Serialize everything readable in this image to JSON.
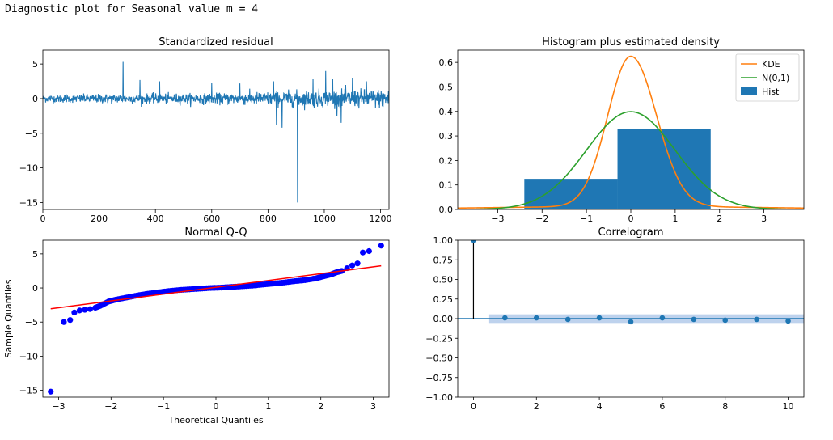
{
  "header": {
    "text": "Diagnostic plot for Seasonal value m = 4"
  },
  "colors": {
    "blue": "#1f77b4",
    "orange": "#ff7f0e",
    "green": "#2ca02c",
    "red": "#ff0000",
    "qqblue": "#0000ff",
    "ci": "#aec7e8"
  },
  "chart_data": [
    {
      "id": "resid",
      "type": "line",
      "title": "Standardized residual",
      "xlabel": "",
      "ylabel": "",
      "xlim": [
        0,
        1230
      ],
      "ylim": [
        -16,
        7
      ],
      "xticks": [
        0,
        200,
        400,
        600,
        800,
        1000,
        1200
      ],
      "yticks": [
        -15,
        -10,
        -5,
        0,
        5
      ],
      "xtick_labels": [
        "0",
        "200",
        "400",
        "600",
        "800",
        "1000",
        "1200"
      ],
      "ytick_labels": [
        "−15",
        "−10",
        "−5",
        "0",
        "5"
      ],
      "n_points": 1230,
      "spikes": [
        [
          285,
          5.3
        ],
        [
          345,
          2.7
        ],
        [
          415,
          2.5
        ],
        [
          600,
          2.3
        ],
        [
          700,
          2.2
        ],
        [
          820,
          2.5
        ],
        [
          830,
          -3.8
        ],
        [
          850,
          -4.2
        ],
        [
          905,
          -15.0
        ],
        [
          960,
          2.8
        ],
        [
          1005,
          4.0
        ],
        [
          1030,
          2.8
        ],
        [
          1060,
          -3.5
        ],
        [
          1100,
          3.0
        ],
        [
          1150,
          2.5
        ]
      ],
      "noise_profile": [
        [
          0,
          0.45
        ],
        [
          300,
          0.55
        ],
        [
          600,
          0.6
        ],
        [
          800,
          0.8
        ],
        [
          950,
          1.0
        ],
        [
          1230,
          1.1
        ]
      ]
    },
    {
      "id": "hist",
      "type": "bar",
      "title": "Histogram plus estimated density",
      "xlim": [
        -3.9,
        3.9
      ],
      "ylim": [
        0,
        0.65
      ],
      "xticks": [
        -3,
        -2,
        -1,
        0,
        1,
        2,
        3
      ],
      "yticks": [
        0.0,
        0.1,
        0.2,
        0.3,
        0.4,
        0.5,
        0.6
      ],
      "xtick_labels": [
        "−3",
        "−2",
        "−1",
        "0",
        "1",
        "2",
        "3"
      ],
      "ytick_labels": [
        "0.0",
        "0.1",
        "0.2",
        "0.3",
        "0.4",
        "0.5",
        "0.6"
      ],
      "bins": [
        [
          -3.9,
          -2.4,
          0.0
        ],
        [
          -2.4,
          -0.3,
          0.125
        ],
        [
          -0.3,
          1.8,
          0.328
        ],
        [
          1.8,
          3.9,
          0.0
        ]
      ],
      "kde": {
        "mu": 0.0,
        "sigma_left": 0.52,
        "sigma_right": 0.58,
        "peak": 0.625,
        "floor": 0.012,
        "floor_width": 3.2
      },
      "normal": {
        "mu": 0,
        "sigma": 1
      },
      "legend": [
        "KDE",
        "N(0,1)",
        "Hist"
      ],
      "legend_position": "top-right"
    },
    {
      "id": "qq",
      "type": "scatter",
      "title": "Normal Q-Q",
      "xlabel": "Theoretical Quantiles",
      "ylabel": "Sample Quantiles",
      "xlim": [
        -3.3,
        3.3
      ],
      "ylim": [
        -16,
        7
      ],
      "xticks": [
        -3,
        -2,
        -1,
        0,
        1,
        2,
        3
      ],
      "yticks": [
        -15,
        -10,
        -5,
        0,
        5
      ],
      "xtick_labels": [
        "−3",
        "−2",
        "−1",
        "0",
        "1",
        "2",
        "3"
      ],
      "ytick_labels": [
        "−15",
        "−10",
        "−5",
        "0",
        "5"
      ],
      "line": {
        "intercept": 0.1,
        "slope": 1.0
      },
      "points": [
        [
          -3.15,
          -15.2
        ],
        [
          -2.9,
          -5.0
        ],
        [
          -2.78,
          -4.7
        ],
        [
          -2.7,
          -3.6
        ],
        [
          -2.6,
          -3.3
        ],
        [
          -2.5,
          -3.2
        ],
        [
          -2.4,
          -3.1
        ],
        [
          -2.3,
          -2.9
        ],
        [
          -2.2,
          -2.6
        ],
        [
          -2.05,
          -2.0
        ],
        [
          -1.9,
          -1.7
        ],
        [
          -1.7,
          -1.4
        ],
        [
          -1.5,
          -1.1
        ],
        [
          -1.3,
          -0.85
        ],
        [
          -1.1,
          -0.65
        ],
        [
          -0.9,
          -0.45
        ],
        [
          -0.7,
          -0.3
        ],
        [
          -0.5,
          -0.2
        ],
        [
          -0.3,
          -0.1
        ],
        [
          -0.1,
          0.0
        ],
        [
          0.1,
          0.05
        ],
        [
          0.3,
          0.15
        ],
        [
          0.5,
          0.25
        ],
        [
          0.7,
          0.35
        ],
        [
          0.9,
          0.5
        ],
        [
          1.1,
          0.65
        ],
        [
          1.3,
          0.8
        ],
        [
          1.5,
          1.0
        ],
        [
          1.7,
          1.15
        ],
        [
          1.9,
          1.4
        ],
        [
          2.05,
          1.7
        ],
        [
          2.2,
          2.0
        ],
        [
          2.3,
          2.3
        ],
        [
          2.4,
          2.5
        ],
        [
          2.5,
          2.9
        ],
        [
          2.6,
          3.3
        ],
        [
          2.7,
          3.6
        ],
        [
          2.8,
          5.2
        ],
        [
          2.92,
          5.4
        ],
        [
          3.15,
          6.2
        ]
      ]
    },
    {
      "id": "acf",
      "type": "scatter",
      "title": "Correlogram",
      "xlim": [
        -0.5,
        10.5
      ],
      "ylim": [
        -1.0,
        1.0
      ],
      "xticks": [
        0,
        2,
        4,
        6,
        8,
        10
      ],
      "yticks": [
        -1.0,
        -0.75,
        -0.5,
        -0.25,
        0.0,
        0.25,
        0.5,
        0.75,
        1.0
      ],
      "xtick_labels": [
        "0",
        "2",
        "4",
        "6",
        "8",
        "10"
      ],
      "ytick_labels": [
        "−1.00",
        "−0.75",
        "−0.50",
        "−0.25",
        "0.00",
        "0.25",
        "0.50",
        "0.75",
        "1.00"
      ],
      "lags": [
        0,
        1,
        2,
        3,
        4,
        5,
        6,
        7,
        8,
        9,
        10
      ],
      "values": [
        1.0,
        0.01,
        0.01,
        -0.01,
        0.01,
        -0.04,
        0.01,
        -0.01,
        -0.02,
        -0.01,
        -0.03
      ],
      "conf_band": [
        -0.055,
        0.055
      ]
    }
  ]
}
